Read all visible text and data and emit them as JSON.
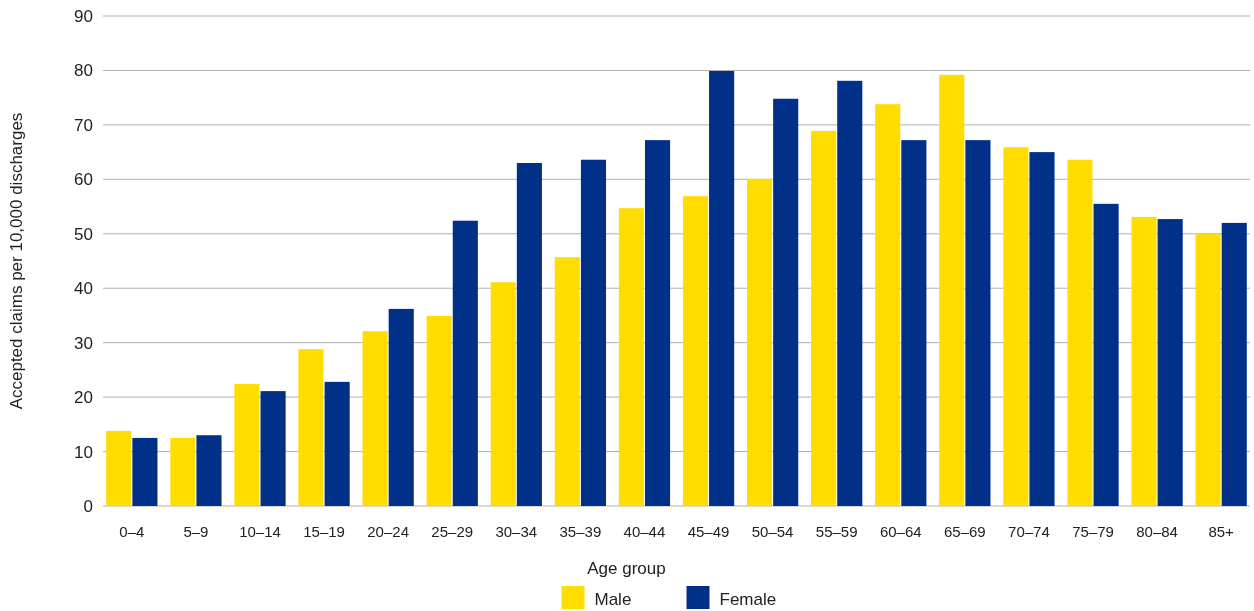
{
  "chart_data": {
    "type": "bar",
    "xlabel": "Age group",
    "ylabel": "Accepted claims per 10,000 discharges",
    "categories": [
      "0–4",
      "5–9",
      "10–14",
      "15–19",
      "20–24",
      "25–29",
      "30–34",
      "35–39",
      "40–44",
      "45–49",
      "50–54",
      "55–59",
      "60–64",
      "65–69",
      "70–74",
      "75–79",
      "80–84",
      "85+"
    ],
    "series": [
      {
        "name": "Male",
        "color": "#ffdd00",
        "values": [
          13.8,
          12.5,
          22.4,
          28.8,
          32.1,
          34.9,
          41.1,
          45.7,
          54.7,
          56.9,
          60.1,
          68.9,
          73.8,
          79.2,
          65.9,
          63.6,
          53.1,
          50.0
        ]
      },
      {
        "name": "Female",
        "color": "#003087",
        "values": [
          12.5,
          13.0,
          21.1,
          22.8,
          36.2,
          52.4,
          63.0,
          63.6,
          67.2,
          79.9,
          74.8,
          78.1,
          67.2,
          67.2,
          65.0,
          55.5,
          52.7,
          52.0
        ]
      }
    ],
    "ylim": [
      0,
      90
    ],
    "yticks": [
      0,
      10,
      20,
      30,
      40,
      50,
      60,
      70,
      80,
      90
    ],
    "grid": "y",
    "legend": "bottom"
  }
}
